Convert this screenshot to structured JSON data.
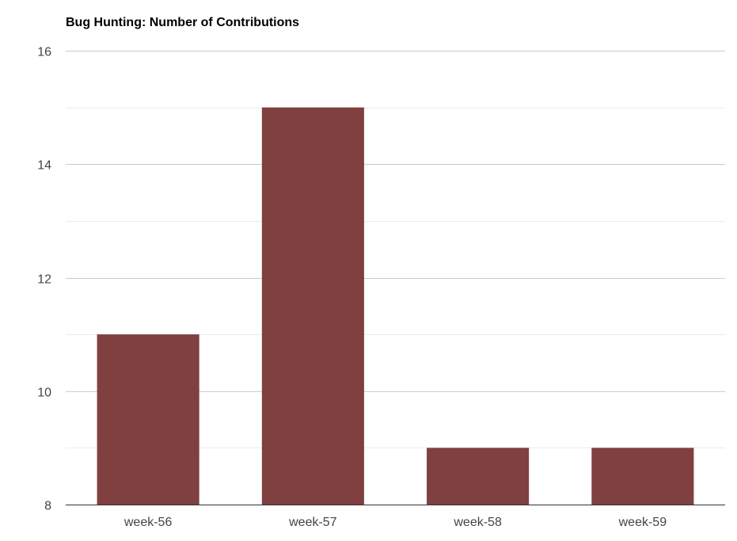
{
  "chart_data": {
    "type": "bar",
    "title": "Bug Hunting: Number of Contributions",
    "xlabel": "",
    "ylabel": "",
    "categories": [
      "week-56",
      "week-57",
      "week-58",
      "week-59"
    ],
    "values": [
      11,
      15,
      9,
      9
    ],
    "ylim": [
      8,
      16
    ],
    "yticks": [
      8,
      10,
      12,
      14,
      16
    ],
    "grid": true,
    "legend": "none",
    "bar_color": "#804040"
  }
}
